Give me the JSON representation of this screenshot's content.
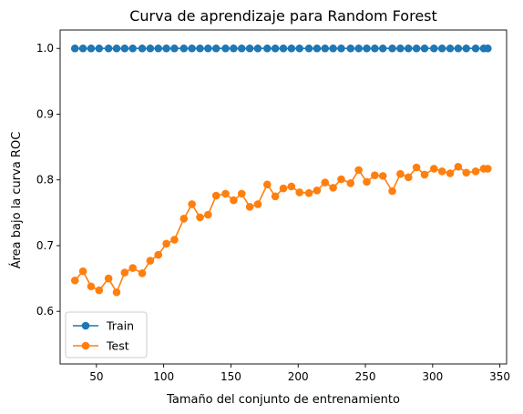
{
  "chart_data": {
    "type": "line",
    "title": "Curva de aprendizaje para Random Forest",
    "xlabel": "Tamaño del conjunto de entrenamiento",
    "ylabel": "Área bajo la curva ROC",
    "xlim": [
      23,
      355
    ],
    "ylim": [
      0.52,
      1.028
    ],
    "xticks": [
      50,
      100,
      150,
      200,
      250,
      300,
      350
    ],
    "xtick_labels": [
      "50",
      "100",
      "150",
      "200",
      "250",
      "300",
      "350"
    ],
    "yticks": [
      0.6,
      0.7,
      0.8,
      0.9,
      1.0
    ],
    "ytick_labels": [
      "0.6",
      "0.7",
      "0.8",
      "0.9",
      "1.0"
    ],
    "grid": false,
    "legend_position": "lower-left",
    "x": [
      34,
      40,
      46,
      52,
      59,
      65,
      71,
      77,
      84,
      90,
      96,
      102,
      108,
      115,
      121,
      127,
      133,
      139,
      146,
      152,
      158,
      164,
      170,
      177,
      183,
      189,
      195,
      201,
      208,
      214,
      220,
      226,
      232,
      239,
      245,
      251,
      257,
      263,
      270,
      276,
      282,
      288,
      294,
      301,
      307,
      313,
      319,
      325,
      332,
      338,
      341
    ],
    "series": [
      {
        "name": "Train",
        "color": "#1f77b4",
        "values": [
          1.0,
          1.0,
          1.0,
          1.0,
          1.0,
          1.0,
          1.0,
          1.0,
          1.0,
          1.0,
          1.0,
          1.0,
          1.0,
          1.0,
          1.0,
          1.0,
          1.0,
          1.0,
          1.0,
          1.0,
          1.0,
          1.0,
          1.0,
          1.0,
          1.0,
          1.0,
          1.0,
          1.0,
          1.0,
          1.0,
          1.0,
          1.0,
          1.0,
          1.0,
          1.0,
          1.0,
          1.0,
          1.0,
          1.0,
          1.0,
          1.0,
          1.0,
          1.0,
          1.0,
          1.0,
          1.0,
          1.0,
          1.0,
          1.0,
          1.0,
          1.0
        ]
      },
      {
        "name": "Test",
        "color": "#ff7f0e",
        "values": [
          0.647,
          0.661,
          0.638,
          0.632,
          0.65,
          0.629,
          0.659,
          0.666,
          0.658,
          0.677,
          0.686,
          0.703,
          0.709,
          0.741,
          0.763,
          0.743,
          0.747,
          0.776,
          0.779,
          0.769,
          0.779,
          0.759,
          0.763,
          0.793,
          0.775,
          0.787,
          0.79,
          0.781,
          0.78,
          0.784,
          0.796,
          0.788,
          0.801,
          0.795,
          0.815,
          0.797,
          0.807,
          0.806,
          0.783,
          0.809,
          0.804,
          0.819,
          0.808,
          0.817,
          0.813,
          0.81,
          0.82,
          0.811,
          0.813,
          0.817,
          0.817
        ]
      }
    ]
  }
}
